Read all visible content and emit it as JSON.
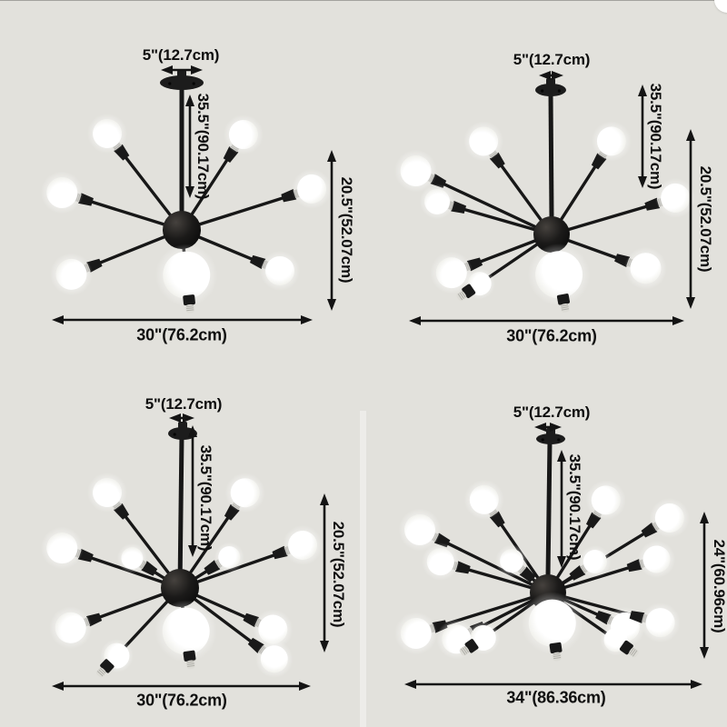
{
  "colors": {
    "background": "#e2e1dc",
    "metal": "#171717",
    "text": "#0e0e0e",
    "bulb": "#ffffff",
    "collar": "#c9c8c2"
  },
  "panels": [
    {
      "name": "top-left",
      "visible_bulbs": 7,
      "labels": {
        "canopy": "5\"(12.7cm)",
        "drop": "35.5\"(90.17cm)",
        "height": "20.5\"(52.07cm)",
        "width": "30\"(76.2cm)"
      }
    },
    {
      "name": "top-right",
      "visible_bulbs": 9,
      "labels": {
        "canopy": "5\"(12.7cm)",
        "drop": "35.5\"(90.17cm)",
        "height": "20.5\"(52.07cm)",
        "width": "30\"(76.2cm)"
      }
    },
    {
      "name": "bottom-left",
      "visible_bulbs": 11,
      "labels": {
        "canopy": "5\"(12.7cm)",
        "drop": "35.5\"(90.17cm)",
        "height": "20.5\"(52.07cm)",
        "width": "30\"(76.2cm)"
      }
    },
    {
      "name": "bottom-right",
      "visible_bulbs": 15,
      "labels": {
        "canopy": "5\"(12.7cm)",
        "drop": "35.5\"(90.17cm)",
        "height": "24\"(60.96cm)",
        "width": "34\"(86.36cm)"
      }
    }
  ]
}
